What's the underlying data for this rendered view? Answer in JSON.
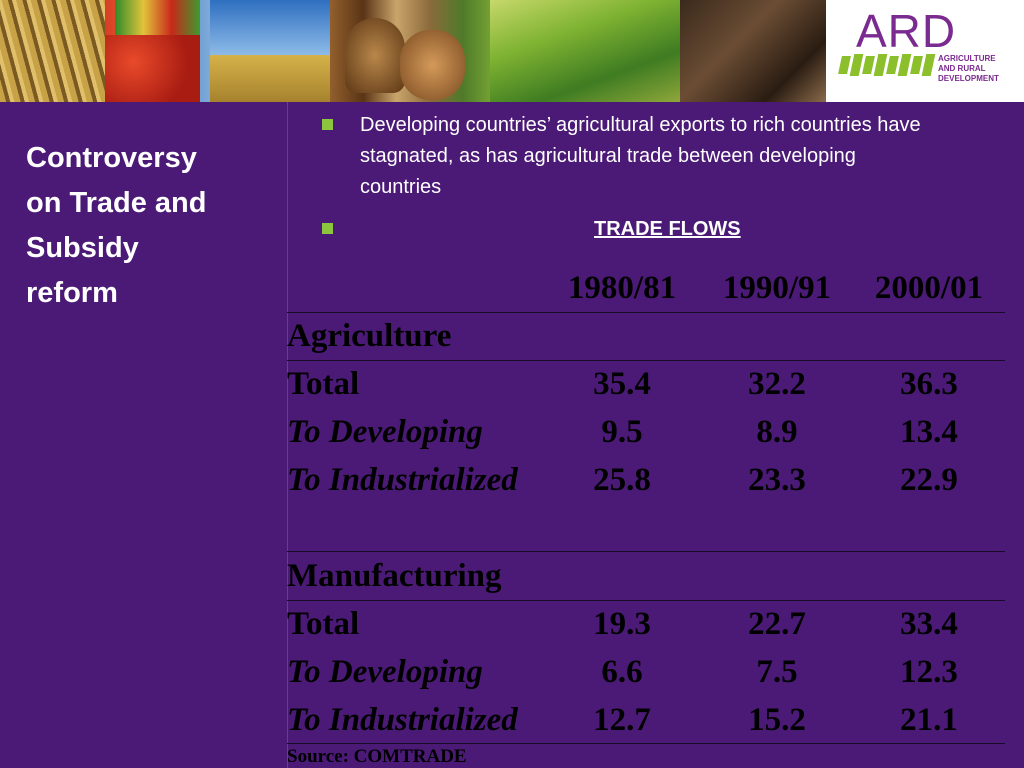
{
  "logo": {
    "name": "ARD",
    "subtitle_lines": [
      "AGRICULTURE",
      "AND RURAL",
      "DEVELOPMENT"
    ]
  },
  "title": {
    "lines": [
      "Controversy",
      "on Trade and",
      "Subsidy",
      "reform"
    ]
  },
  "bullets": [
    {
      "text": "Developing countries’ agricultural exports to rich countries have stagnated, as has agricultural trade between developing countries"
    },
    {
      "text": "TRADE FLOWS"
    }
  ],
  "table": {
    "headers": [
      "",
      "1980/81",
      "1990/91",
      "2000/01"
    ],
    "sections": [
      {
        "title": "Agriculture",
        "rows": [
          {
            "label": "Total",
            "values": [
              "35.4",
              "32.2",
              "36.3"
            ]
          },
          {
            "label": "To Developing",
            "values": [
              "9.5",
              "8.9",
              "13.4"
            ]
          },
          {
            "label": "To Industrialized",
            "values": [
              "25.8",
              "23.3",
              "22.9"
            ]
          }
        ]
      },
      {
        "title": "Manufacturing",
        "rows": [
          {
            "label": "Total",
            "values": [
              "19.3",
              "22.7",
              "33.4"
            ]
          },
          {
            "label": "To Developing",
            "values": [
              "6.6",
              "7.5",
              "12.3"
            ]
          },
          {
            "label": "To Industrialized",
            "values": [
              "12.7",
              "15.2",
              "21.1"
            ]
          }
        ]
      }
    ],
    "source": "Source: COMTRADE"
  },
  "colors": {
    "background": "#4b1a76",
    "bullet": "#8cc63e",
    "logo_text": "#7b2a8f"
  }
}
